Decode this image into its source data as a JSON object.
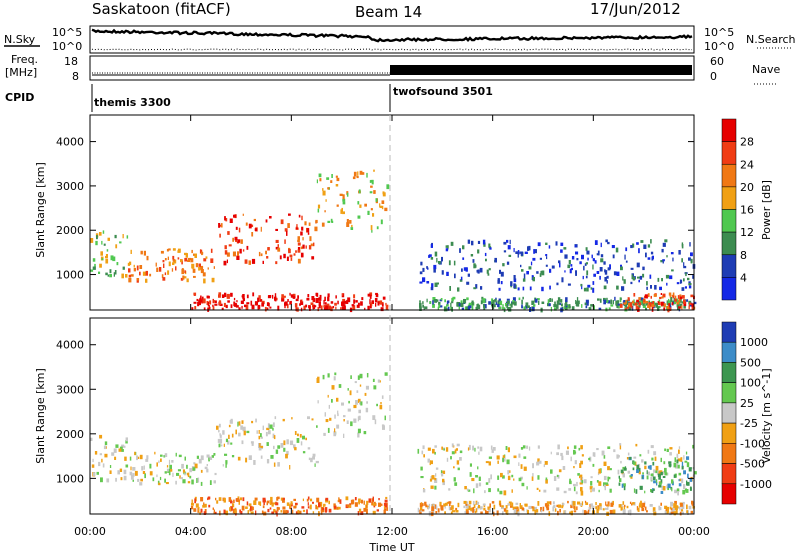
{
  "header": {
    "title_left": "Saskatoon (fitACF)",
    "title_center": "Beam 14",
    "title_right": "17/Jun/2012"
  },
  "panels": {
    "nsky": {
      "label": "N.Sky",
      "ticks": [
        "10^5",
        "10^0"
      ],
      "right_label": "N.Search",
      "right_ticks": [
        "10^5",
        "10^0"
      ]
    },
    "freq": {
      "label_line1": "Freq.",
      "label_line2": "[MHz]",
      "ticks": [
        "18",
        "8"
      ],
      "right_label": "Nave",
      "right_ticks": [
        "60",
        "0"
      ]
    },
    "cpid": {
      "label": "CPID",
      "modes": [
        "themis 3300",
        "twofsound 3501"
      ]
    }
  },
  "colors": {
    "power": [
      "#1428e6",
      "#1e3cb4",
      "#3c8c50",
      "#50c850",
      "#f0a014",
      "#f07814",
      "#f03c14",
      "#e60000"
    ],
    "velocity": [
      "#1e3cb4",
      "#3c8cc8",
      "#3c9650",
      "#64c850",
      "#c8c8c8",
      "#f0a014",
      "#f07814",
      "#f03c14",
      "#e60000"
    ]
  },
  "chart_data": [
    {
      "type": "heatmap",
      "title": "Power [dB]",
      "ylabel": "Slant Range [km]",
      "xlabel": "Time UT",
      "x_ticks": [
        "00:00",
        "04:00",
        "08:00",
        "12:00",
        "16:00",
        "20:00",
        "00:00"
      ],
      "y_ticks": [
        1000,
        2000,
        3000,
        4000
      ],
      "ylim": [
        200,
        4600
      ],
      "xlim_hours": [
        0,
        24
      ],
      "colorbar": {
        "label": "Power [dB]",
        "ticks": [
          "4",
          "8",
          "12",
          "16",
          "20",
          "24",
          "28"
        ]
      },
      "bands": [
        {
          "t0": 0.0,
          "t1": 1.5,
          "r0": 1000,
          "r1": 2000,
          "level": 3
        },
        {
          "t0": 1.5,
          "t1": 5.0,
          "r0": 900,
          "r1": 1600,
          "level": 5
        },
        {
          "t0": 5.0,
          "t1": 9.0,
          "r0": 1300,
          "r1": 2400,
          "level": 6
        },
        {
          "t0": 9.0,
          "t1": 11.8,
          "r0": 2000,
          "r1": 3400,
          "level": 4
        },
        {
          "t0": 4.0,
          "t1": 11.8,
          "r0": 250,
          "r1": 600,
          "level": 7
        },
        {
          "t0": 13.0,
          "t1": 24.0,
          "r0": 700,
          "r1": 1800,
          "level": 1
        },
        {
          "t0": 13.0,
          "t1": 24.0,
          "r0": 250,
          "r1": 500,
          "level": 2
        },
        {
          "t0": 21.0,
          "t1": 24.0,
          "r0": 250,
          "r1": 600,
          "level": 6
        }
      ]
    },
    {
      "type": "heatmap",
      "title": "Velocity [m s^-1]",
      "ylabel": "Slant Range [km]",
      "xlabel": "Time UT",
      "x_ticks": [
        "00:00",
        "04:00",
        "08:00",
        "12:00",
        "16:00",
        "20:00",
        "00:00"
      ],
      "y_ticks": [
        1000,
        2000,
        3000,
        4000
      ],
      "ylim": [
        200,
        4600
      ],
      "xlim_hours": [
        0,
        24
      ],
      "colorbar": {
        "label": "Velocity [m s^-1]",
        "ticks": [
          "1000",
          "500",
          "100",
          "25",
          "-25",
          "-100",
          "-500",
          "-1000"
        ]
      },
      "bands": [
        {
          "t0": 0.0,
          "t1": 1.5,
          "r0": 1000,
          "r1": 2000,
          "level": 4
        },
        {
          "t0": 1.5,
          "t1": 5.0,
          "r0": 900,
          "r1": 1600,
          "level": 4
        },
        {
          "t0": 5.0,
          "t1": 9.0,
          "r0": 1300,
          "r1": 2400,
          "level": 4
        },
        {
          "t0": 9.0,
          "t1": 11.8,
          "r0": 2000,
          "r1": 3400,
          "level": 4
        },
        {
          "t0": 4.0,
          "t1": 11.8,
          "r0": 250,
          "r1": 600,
          "level": 6
        },
        {
          "t0": 13.0,
          "t1": 24.0,
          "r0": 700,
          "r1": 1800,
          "level": 4
        },
        {
          "t0": 13.0,
          "t1": 24.0,
          "r0": 250,
          "r1": 500,
          "level": 5
        },
        {
          "t0": 21.0,
          "t1": 24.0,
          "r0": 700,
          "r1": 1500,
          "level": 2
        }
      ]
    }
  ]
}
